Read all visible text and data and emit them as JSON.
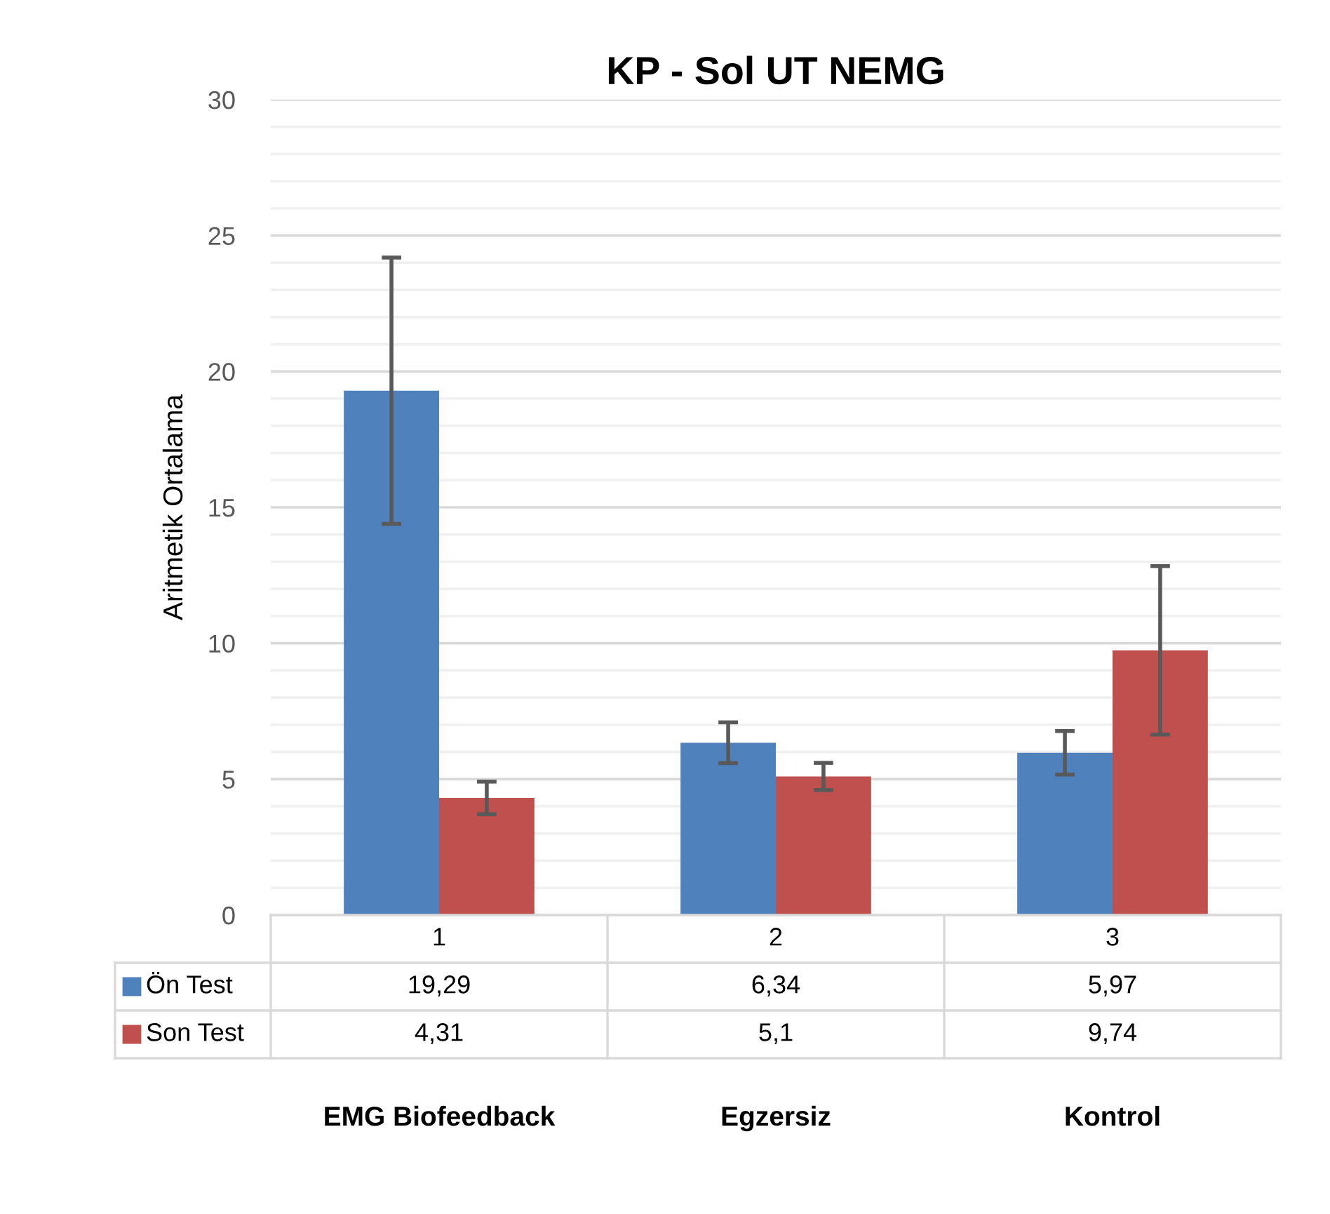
{
  "chart_data": {
    "type": "bar",
    "title": "KP - Sol UT NEMG",
    "ylabel": "Aritmetik Ortalama",
    "categories": [
      "1",
      "2",
      "3"
    ],
    "series": [
      {
        "name": "Ön Test",
        "color": "#4f81bd",
        "values": [
          19.29,
          6.34,
          5.97
        ],
        "errors": [
          4.9,
          0.75,
          0.8
        ],
        "value_labels": [
          "19,29",
          "6,34",
          "5,97"
        ]
      },
      {
        "name": "Son Test",
        "color": "#c0504d",
        "values": [
          4.31,
          5.1,
          9.74
        ],
        "errors": [
          0.6,
          0.5,
          3.1
        ],
        "value_labels": [
          "4,31",
          "5,1",
          "9,74"
        ]
      }
    ],
    "annotations": [
      "EMG Biofeedback",
      "Egzersiz",
      "Kontrol"
    ],
    "ylim": [
      0,
      30
    ],
    "yticks": [
      0,
      5,
      10,
      15,
      20,
      25,
      30
    ],
    "grid": "y",
    "legend": "bottom left"
  }
}
